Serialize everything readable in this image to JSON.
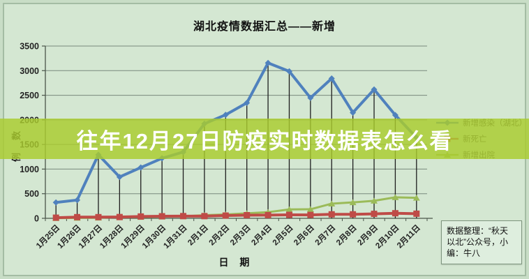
{
  "title": "湖北疫情数据汇总——新增",
  "overlay": {
    "text": "往年12月27日防疫实时数据表怎么看",
    "band_color": "rgba(170,204,45,0.82)",
    "text_color": "#ffffff"
  },
  "chart_data": {
    "type": "line",
    "title": "湖北疫情数据汇总——新增",
    "xlabel": "日 期",
    "ylabel": "例数",
    "ylim": [
      0,
      3500
    ],
    "y_tick_step": 500,
    "grid": true,
    "drop_lines": true,
    "legend_position": "right",
    "categories": [
      "1月25日",
      "1月26日",
      "1月27日",
      "1月28日",
      "1月29日",
      "1月30日",
      "1月31日",
      "2月1日",
      "2月2日",
      "2月3日",
      "2月4日",
      "2月5日",
      "2月6日",
      "2月7日",
      "2月8日",
      "2月9日",
      "2月10日",
      "2月11日"
    ],
    "series": [
      {
        "name": "新增感染（湖北）",
        "color": "#4f81bd",
        "marker": "diamond",
        "width": 4,
        "values": [
          323,
          371,
          1291,
          840,
          1032,
          1220,
          1347,
          1921,
          2103,
          2345,
          3156,
          2987,
          2447,
          2841,
          2147,
          2618,
          2097,
          1638
        ]
      },
      {
        "name": "新死亡",
        "color": "#bf4b47",
        "marker": "square",
        "width": 4,
        "values": [
          13,
          24,
          24,
          26,
          37,
          42,
          45,
          45,
          56,
          64,
          65,
          70,
          69,
          81,
          81,
          91,
          103,
          94
        ]
      },
      {
        "name": "新增出院",
        "color": "#9bbb59",
        "marker": "triangle",
        "width": 3,
        "values": [
          3,
          8,
          12,
          25,
          26,
          33,
          41,
          63,
          78,
          101,
          125,
          181,
          184,
          298,
          324,
          356,
          427,
          417
        ]
      }
    ]
  },
  "axes": {
    "y_title": "例数",
    "x_title": "日 期"
  },
  "info_box": {
    "lines": [
      "数据整理：“秋天",
      "以北”公众号，小",
      "编：牛八"
    ]
  },
  "colors": {
    "background": "#d4e7d2",
    "frame": "#a4bca4",
    "gridline": "#78897c",
    "axis": "#4a554a",
    "drop_line": "#1e1e1e",
    "tick_text": "#242424"
  }
}
